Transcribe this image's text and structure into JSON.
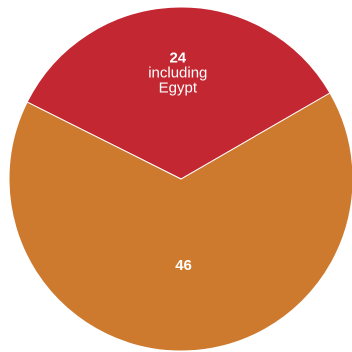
{
  "chart_data": {
    "type": "pie",
    "title": "",
    "slices": [
      {
        "value": 24,
        "value_label": "24",
        "note": [
          "including",
          "Egypt"
        ],
        "color": "#c22732"
      },
      {
        "value": 46,
        "value_label": "46",
        "note": [],
        "color": "#cd7a2f"
      }
    ],
    "start_angle_deg": -30,
    "direction": "clockwise",
    "legend": "none"
  }
}
